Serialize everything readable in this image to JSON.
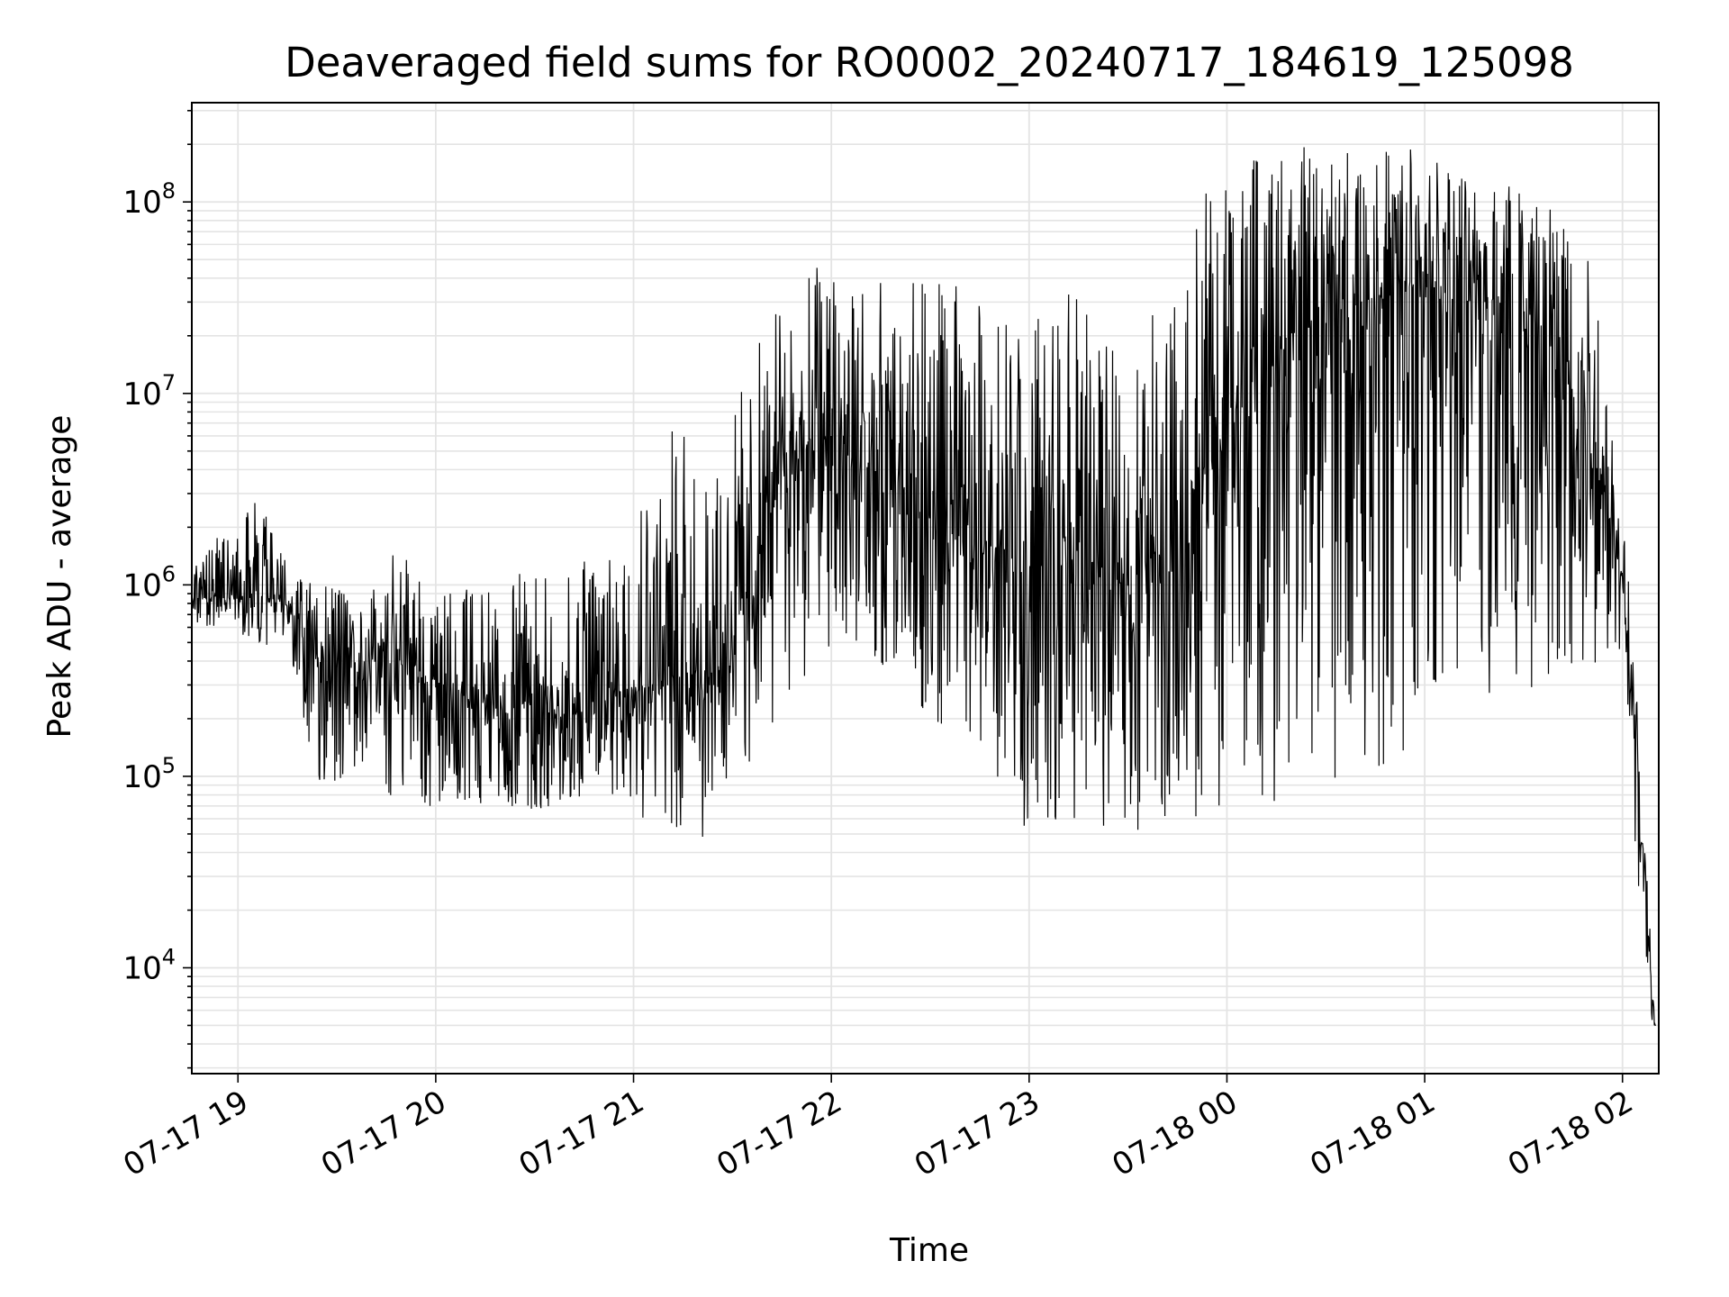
{
  "chart_data": {
    "type": "line",
    "title": "Deaveraged field sums for RO0002_20240717_184619_125098",
    "xlabel": "Time",
    "ylabel": "Peak ADU - average",
    "yscale": "log",
    "ylim": [
      2800,
      330000000
    ],
    "xlim": [
      "2024-07-17 18:46",
      "2024-07-18 02:11"
    ],
    "x_ticks": [
      {
        "x": "2024-07-17 19:00",
        "label": "07-17 19"
      },
      {
        "x": "2024-07-17 20:00",
        "label": "07-17 20"
      },
      {
        "x": "2024-07-17 21:00",
        "label": "07-17 21"
      },
      {
        "x": "2024-07-17 22:00",
        "label": "07-17 22"
      },
      {
        "x": "2024-07-17 23:00",
        "label": "07-17 23"
      },
      {
        "x": "2024-07-18 00:00",
        "label": "07-18 00"
      },
      {
        "x": "2024-07-18 01:00",
        "label": "07-18 01"
      },
      {
        "x": "2024-07-18 02:00",
        "label": "07-18 02"
      }
    ],
    "y_ticks": [
      {
        "value": 10000,
        "base": "10",
        "exp": "4"
      },
      {
        "value": 100000,
        "base": "10",
        "exp": "5"
      },
      {
        "value": 1000000,
        "base": "10",
        "exp": "6"
      },
      {
        "value": 10000000,
        "base": "10",
        "exp": "7"
      },
      {
        "value": 100000000,
        "base": "10",
        "exp": "8"
      }
    ],
    "grid": true,
    "series": [
      {
        "color": "#000000",
        "envelope": [
          {
            "x": "2024-07-17 18:46",
            "median": 850000,
            "low": 650000,
            "high": 1200000
          },
          {
            "x": "2024-07-17 19:05",
            "median": 900000,
            "low": 500000,
            "high": 3200000
          },
          {
            "x": "2024-07-17 19:15",
            "median": 800000,
            "low": 450000,
            "high": 1300000
          },
          {
            "x": "2024-07-17 19:25",
            "median": 400000,
            "low": 80000,
            "high": 1000000
          },
          {
            "x": "2024-07-17 19:40",
            "median": 400000,
            "low": 100000,
            "high": 900000
          },
          {
            "x": "2024-07-17 19:50",
            "median": 380000,
            "low": 60000,
            "high": 2000000
          },
          {
            "x": "2024-07-17 20:00",
            "median": 300000,
            "low": 65000,
            "high": 1000000
          },
          {
            "x": "2024-07-17 20:20",
            "median": 220000,
            "low": 70000,
            "high": 1000000
          },
          {
            "x": "2024-07-17 20:30",
            "median": 250000,
            "low": 65000,
            "high": 1300000
          },
          {
            "x": "2024-07-17 20:40",
            "median": 200000,
            "low": 70000,
            "high": 1100000
          },
          {
            "x": "2024-07-17 20:55",
            "median": 280000,
            "low": 80000,
            "high": 2500000
          },
          {
            "x": "2024-07-17 21:10",
            "median": 320000,
            "low": 45000,
            "high": 8000000
          },
          {
            "x": "2024-07-17 21:25",
            "median": 350000,
            "low": 45000,
            "high": 4000000
          },
          {
            "x": "2024-07-17 21:35",
            "median": 900000,
            "low": 100000,
            "high": 16000000
          },
          {
            "x": "2024-07-17 21:45",
            "median": 4000000,
            "low": 200000,
            "high": 30000000
          },
          {
            "x": "2024-07-17 22:00",
            "median": 6000000,
            "low": 500000,
            "high": 70000000
          },
          {
            "x": "2024-07-17 22:15",
            "median": 3000000,
            "low": 350000,
            "high": 40000000
          },
          {
            "x": "2024-07-17 22:35",
            "median": 1800000,
            "low": 150000,
            "high": 40000000
          },
          {
            "x": "2024-07-17 22:55",
            "median": 1500000,
            "low": 55000,
            "high": 25000000
          },
          {
            "x": "2024-07-17 23:15",
            "median": 1200000,
            "low": 55000,
            "high": 35000000
          },
          {
            "x": "2024-07-17 23:30",
            "median": 1000000,
            "low": 50000,
            "high": 12000000
          },
          {
            "x": "2024-07-17 23:45",
            "median": 2000000,
            "low": 55000,
            "high": 100000000
          },
          {
            "x": "2024-07-18 00:00",
            "median": 8000000,
            "low": 60000,
            "high": 150000000
          },
          {
            "x": "2024-07-18 00:20",
            "median": 20000000,
            "low": 80000,
            "high": 200000000
          },
          {
            "x": "2024-07-18 00:40",
            "median": 30000000,
            "low": 80000,
            "high": 200000000
          },
          {
            "x": "2024-07-18 01:00",
            "median": 35000000,
            "low": 150000,
            "high": 200000000
          },
          {
            "x": "2024-07-18 01:20",
            "median": 30000000,
            "low": 200000,
            "high": 150000000
          },
          {
            "x": "2024-07-18 01:40",
            "median": 20000000,
            "low": 300000,
            "high": 130000000
          },
          {
            "x": "2024-07-18 01:50",
            "median": 8000000,
            "low": 400000,
            "high": 80000000
          },
          {
            "x": "2024-07-18 02:00",
            "median": 1000000,
            "low": 300000,
            "high": 3000000
          },
          {
            "x": "2024-07-18 02:04",
            "median": 150000,
            "low": 40000,
            "high": 330000
          },
          {
            "x": "2024-07-18 02:08",
            "median": 12000,
            "low": 6000,
            "high": 20000
          },
          {
            "x": "2024-07-18 02:10",
            "median": 5000,
            "low": 4500,
            "high": 8000
          }
        ]
      }
    ]
  }
}
